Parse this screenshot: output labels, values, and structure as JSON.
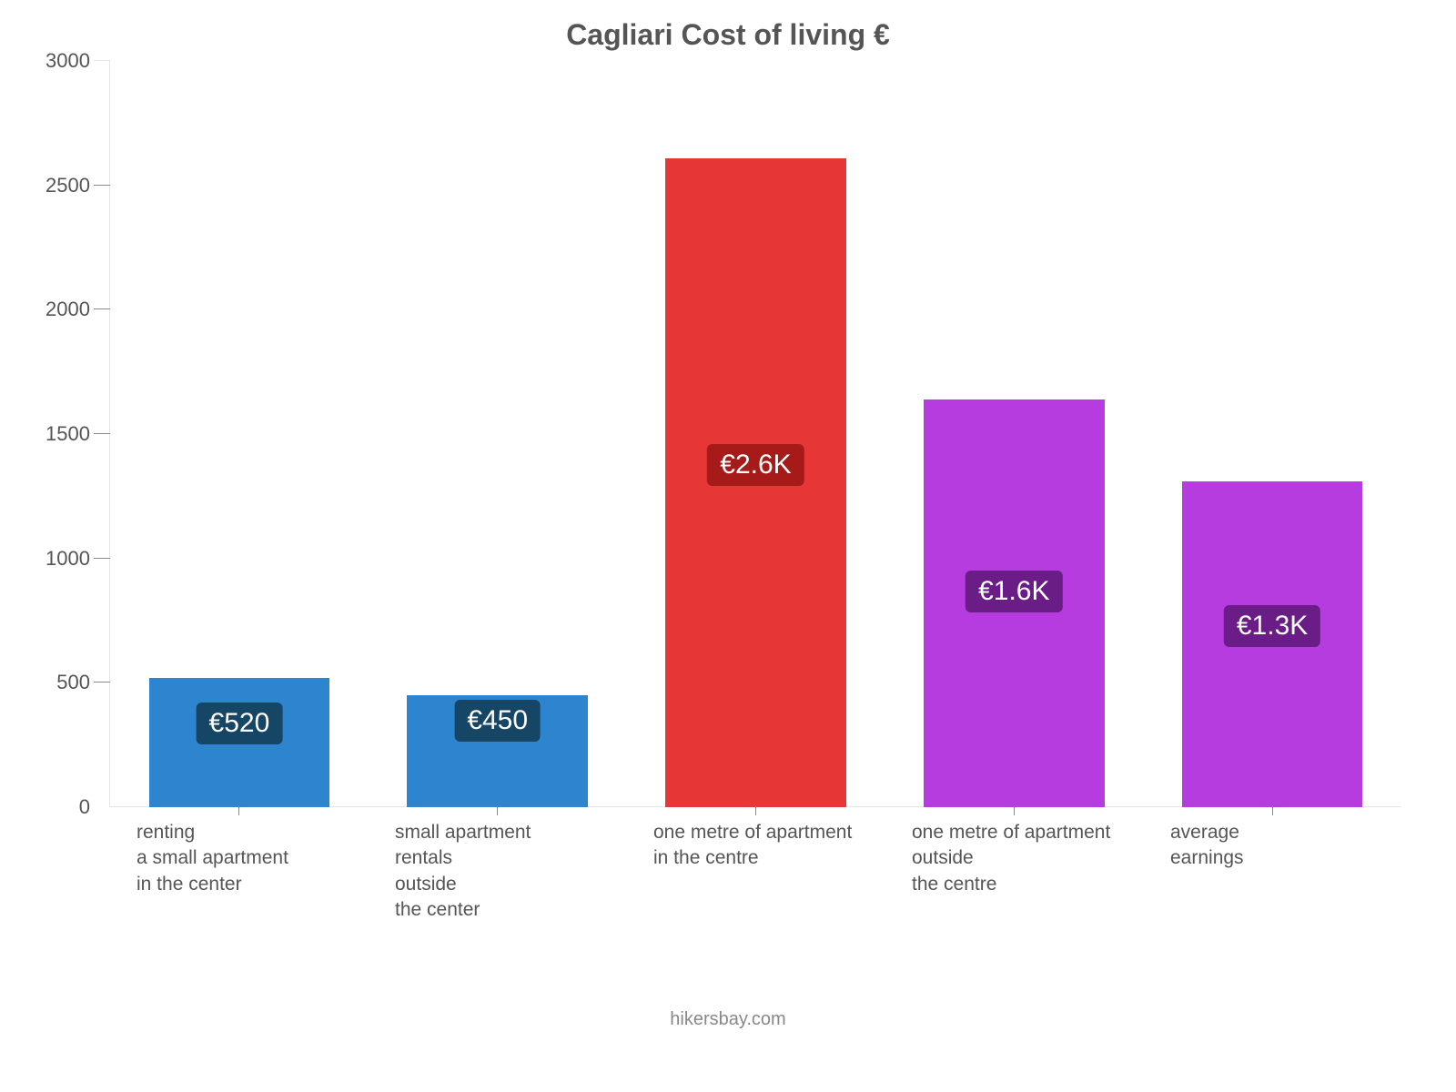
{
  "chart": {
    "type": "bar",
    "title": "Cagliari Cost of living €",
    "title_color": "#555555",
    "title_fontsize": 32,
    "background_color": "#ffffff",
    "axis_line_color": "#e6e6e6",
    "tick_color": "#888888",
    "label_color": "#555555",
    "y": {
      "min": 0,
      "max": 3000,
      "step": 500,
      "label_fontsize": 22,
      "ticks": [
        {
          "v": 0,
          "label": "0"
        },
        {
          "v": 500,
          "label": "500"
        },
        {
          "v": 1000,
          "label": "1000"
        },
        {
          "v": 1500,
          "label": "1500"
        },
        {
          "v": 2000,
          "label": "2000"
        },
        {
          "v": 2500,
          "label": "2500"
        },
        {
          "v": 3000,
          "label": "3000"
        }
      ]
    },
    "bar_width_pct": 70,
    "badge_fontsize": 30,
    "xlabel_fontsize": 21,
    "bars": [
      {
        "value": 520,
        "label": "renting\na small apartment\nin the center",
        "value_text": "€520",
        "bar_color": "#2d85d0",
        "badge_bg": "#164666",
        "badge_top_pct": 19
      },
      {
        "value": 450,
        "label": "small apartment\nrentals\noutside\nthe center",
        "value_text": "€450",
        "bar_color": "#2d85d0",
        "badge_bg": "#164666",
        "badge_top_pct": 4
      },
      {
        "value": 2610,
        "label": "one metre of apartment\nin the centre",
        "value_text": "€2.6K",
        "bar_color": "#e63636",
        "badge_bg": "#a71a1a",
        "badge_top_pct": 44
      },
      {
        "value": 1640,
        "label": "one metre of apartment\noutside\nthe centre",
        "value_text": "€1.6K",
        "bar_color": "#b63ce0",
        "badge_bg": "#6a1c87",
        "badge_top_pct": 42
      },
      {
        "value": 1310,
        "label": "average\nearnings",
        "value_text": "€1.3K",
        "bar_color": "#b63ce0",
        "badge_bg": "#6a1c87",
        "badge_top_pct": 38
      }
    ],
    "attribution": "hikersbay.com",
    "attribution_color": "#888888",
    "attribution_fontsize": 20
  }
}
